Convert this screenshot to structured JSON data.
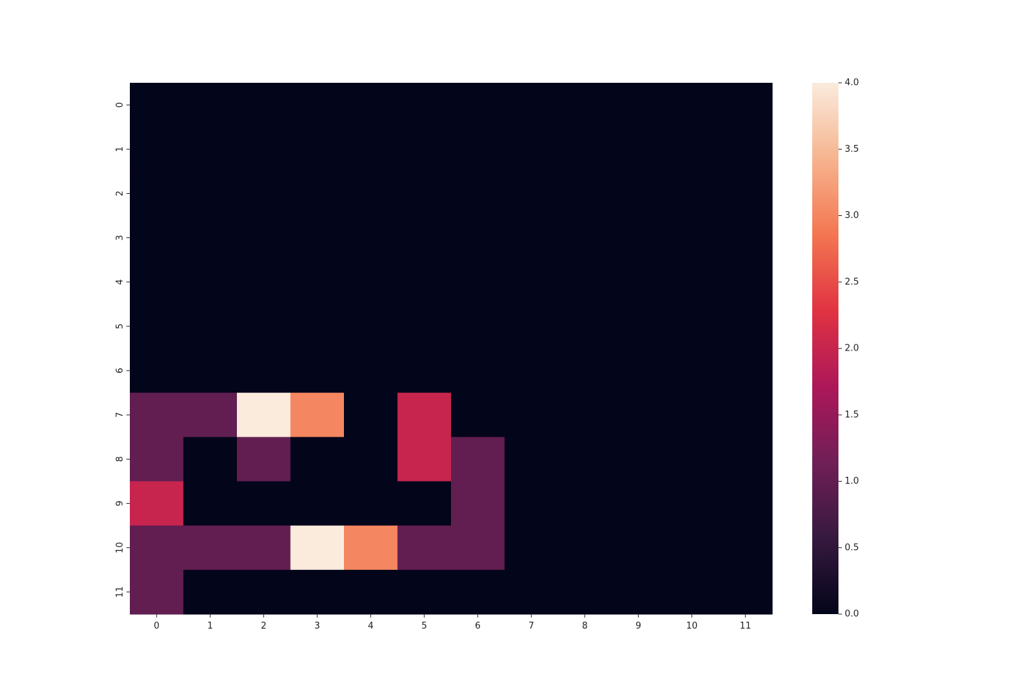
{
  "chart_data": {
    "type": "heatmap",
    "title": "",
    "xlabel": "",
    "ylabel": "",
    "x_categories": [
      "0",
      "1",
      "2",
      "3",
      "4",
      "5",
      "6",
      "7",
      "8",
      "9",
      "10",
      "11"
    ],
    "y_categories": [
      "0",
      "1",
      "2",
      "3",
      "4",
      "5",
      "6",
      "7",
      "8",
      "9",
      "10",
      "11"
    ],
    "values": [
      [
        0,
        0,
        0,
        0,
        0,
        0,
        0,
        0,
        0,
        0,
        0,
        0
      ],
      [
        0,
        0,
        0,
        0,
        0,
        0,
        0,
        0,
        0,
        0,
        0,
        0
      ],
      [
        0,
        0,
        0,
        0,
        0,
        0,
        0,
        0,
        0,
        0,
        0,
        0
      ],
      [
        0,
        0,
        0,
        0,
        0,
        0,
        0,
        0,
        0,
        0,
        0,
        0
      ],
      [
        0,
        0,
        0,
        0,
        0,
        0,
        0,
        0,
        0,
        0,
        0,
        0
      ],
      [
        0,
        0,
        0,
        0,
        0,
        0,
        0,
        0,
        0,
        0,
        0,
        0
      ],
      [
        0,
        0,
        0,
        0,
        0,
        0,
        0,
        0,
        0,
        0,
        0,
        0
      ],
      [
        1,
        1,
        4,
        3,
        0,
        2,
        0,
        0,
        0,
        0,
        0,
        0
      ],
      [
        1,
        0,
        1,
        0,
        0,
        2,
        1,
        0,
        0,
        0,
        0,
        0
      ],
      [
        2,
        0,
        0,
        0,
        0,
        0,
        1,
        0,
        0,
        0,
        0,
        0
      ],
      [
        1,
        1,
        1,
        4,
        3,
        1,
        1,
        0,
        0,
        0,
        0,
        0
      ],
      [
        1,
        0,
        0,
        0,
        0,
        0,
        0,
        0,
        0,
        0,
        0,
        0
      ]
    ],
    "colorbar": {
      "min": 0.0,
      "max": 4.0,
      "ticks": [
        "0.0",
        "0.5",
        "1.0",
        "1.5",
        "2.0",
        "2.5",
        "3.0",
        "3.5",
        "4.0"
      ]
    },
    "colormap": {
      "name": "rocket",
      "stops": [
        "#03051a",
        "#36193e",
        "#701f57",
        "#ad1759",
        "#e13342",
        "#f37651",
        "#f6b48f",
        "#faebdd"
      ]
    }
  }
}
